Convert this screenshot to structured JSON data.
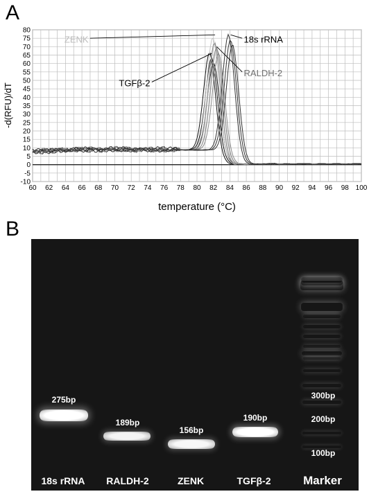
{
  "panels": {
    "a_label": "A",
    "b_label": "B"
  },
  "chart_data": {
    "type": "line",
    "xlabel": "temperature (°C)",
    "ylabel": "-d(RFU)/dT",
    "xlim": [
      60,
      100
    ],
    "ylim": [
      -10,
      80
    ],
    "xticks": [
      "60",
      "62",
      "64",
      "66",
      "68",
      "70",
      "72",
      "74",
      "76",
      "78",
      "80",
      "82",
      "84",
      "86",
      "88",
      "90",
      "92",
      "94",
      "96",
      "98",
      "100"
    ],
    "yticks": [
      "-10",
      "-5",
      "0",
      "5",
      "10",
      "15",
      "20",
      "25",
      "30",
      "35",
      "40",
      "45",
      "50",
      "55",
      "60",
      "65",
      "70",
      "75",
      "80"
    ],
    "grid": true,
    "annotations": [
      {
        "text": "ZENK",
        "color": "#bdbdbd"
      },
      {
        "text": "18s rRNA",
        "color": "#000000"
      },
      {
        "text": "RALDH-2",
        "color": "#707070"
      },
      {
        "text": "TGFβ-2",
        "color": "#000000"
      }
    ],
    "series": [
      {
        "name": "TGFβ-2",
        "color": "#111111",
        "peak_temperature": 81.8,
        "peak_value": 66,
        "baseline": 8
      },
      {
        "name": "ZENK",
        "color": "#c4c4c4",
        "peak_temperature": 82.2,
        "peak_value": 75,
        "baseline": 8
      },
      {
        "name": "RALDH-2",
        "color": "#8a8a8a",
        "peak_temperature": 82.4,
        "peak_value": 72,
        "baseline": 8
      },
      {
        "name": "18s rRNA",
        "color": "#333333",
        "peak_temperature": 84.1,
        "peak_value": 77,
        "baseline": 8
      }
    ]
  },
  "gel": {
    "lanes": [
      {
        "label": "18s rRNA",
        "size": "275bp"
      },
      {
        "label": "RALDH-2",
        "size": "189bp"
      },
      {
        "label": "ZENK",
        "size": "156bp"
      },
      {
        "label": "TGFβ-2",
        "size": "190bp"
      }
    ],
    "marker_label": "Marker",
    "marker_sizes": [
      "300bp",
      "200bp",
      "100bp"
    ]
  }
}
